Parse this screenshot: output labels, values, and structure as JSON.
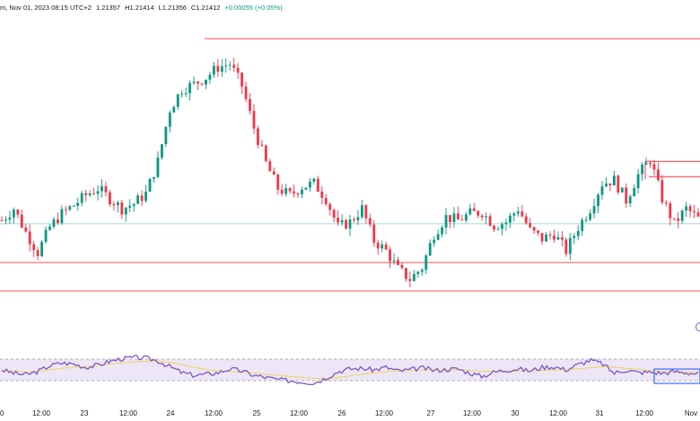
{
  "header": {
    "interval_date": "m, Nov 01, 2023 08:15 UTC+2",
    "open": "1.21357",
    "high": "H1.21414",
    "low": "L1.21356",
    "close": "C1.21412",
    "change": "+0.00055 (+0.05%)"
  },
  "x_axis_labels": [
    "12:00",
    "23",
    "12:00",
    "24",
    "12:00",
    "25",
    "12:00",
    "26",
    "12:00",
    "27",
    "12:00",
    "30",
    "12:00",
    "31",
    "12:00",
    "Nov"
  ],
  "colors": {
    "up": "#089981",
    "down": "#f23645",
    "level_line": "#f23645",
    "price_line": "#9ed6cf",
    "rsi_line": "#7e57c2",
    "rsi_ma": "#f7cf47",
    "rsi_band": "#ece6f7",
    "rsi_box": "#2962ff"
  },
  "chart_data": {
    "type": "candlestick",
    "description_series": [
      {
        "name": "price",
        "close_path": [
          1.2105,
          1.2112,
          1.2098,
          1.2086,
          1.2101,
          1.2109,
          1.2114,
          1.212,
          1.2124,
          1.2118,
          1.2112,
          1.2115,
          1.2121,
          1.214,
          1.2171,
          1.2183,
          1.2186,
          1.219,
          1.2196,
          1.2198,
          1.2185,
          1.216,
          1.2139,
          1.2124,
          1.212,
          1.2125,
          1.2127,
          1.2118,
          1.2101,
          1.2104,
          1.2112,
          1.2093,
          1.2087,
          1.2076,
          1.207,
          1.2077,
          1.2097,
          1.2107,
          1.2105,
          1.2109,
          1.211,
          1.2102,
          1.2104,
          1.2112,
          1.2099,
          1.2094,
          1.2097,
          1.2087,
          1.2101,
          1.2112,
          1.2127,
          1.2129,
          1.2117,
          1.2132,
          1.2141,
          1.2118,
          1.2103,
          1.2112,
          1.2106
        ]
      }
    ],
    "indicator": {
      "name": "RSI",
      "rsi_path": [
        50,
        44,
        41,
        47,
        58,
        63,
        61,
        55,
        59,
        66,
        71,
        73,
        72,
        67,
        56,
        45,
        40,
        42,
        45,
        52,
        48,
        40,
        36,
        32,
        30,
        28,
        26,
        35,
        47,
        52,
        53,
        50,
        55,
        48,
        50,
        54,
        49,
        51,
        52,
        44,
        38,
        46,
        50,
        52,
        48,
        55,
        56,
        50,
        60,
        68,
        62,
        44,
        50,
        45,
        46,
        44,
        47,
        45,
        43
      ],
      "ma_path": [
        50,
        48,
        46,
        47,
        50,
        53,
        55,
        56,
        58,
        61,
        63,
        65,
        66,
        67,
        64,
        60,
        55,
        51,
        48,
        47,
        46,
        44,
        42,
        40,
        38,
        36,
        34,
        34,
        36,
        39,
        42,
        45,
        47,
        48,
        49,
        50,
        50,
        50,
        50,
        49,
        48,
        47,
        47,
        48,
        48,
        49,
        50,
        50,
        52,
        54,
        56,
        55,
        53,
        51,
        49,
        47,
        46,
        46,
        45
      ],
      "ylim": [
        0,
        100
      ],
      "bands": [
        30,
        70
      ]
    },
    "horizontal_levels": [
      1.2213,
      1.208,
      1.2063
    ],
    "current_price_line": 1.2103,
    "resistance_box": [
      1.214,
      1.2131
    ],
    "ylim": [
      1.2055,
      1.222
    ]
  }
}
